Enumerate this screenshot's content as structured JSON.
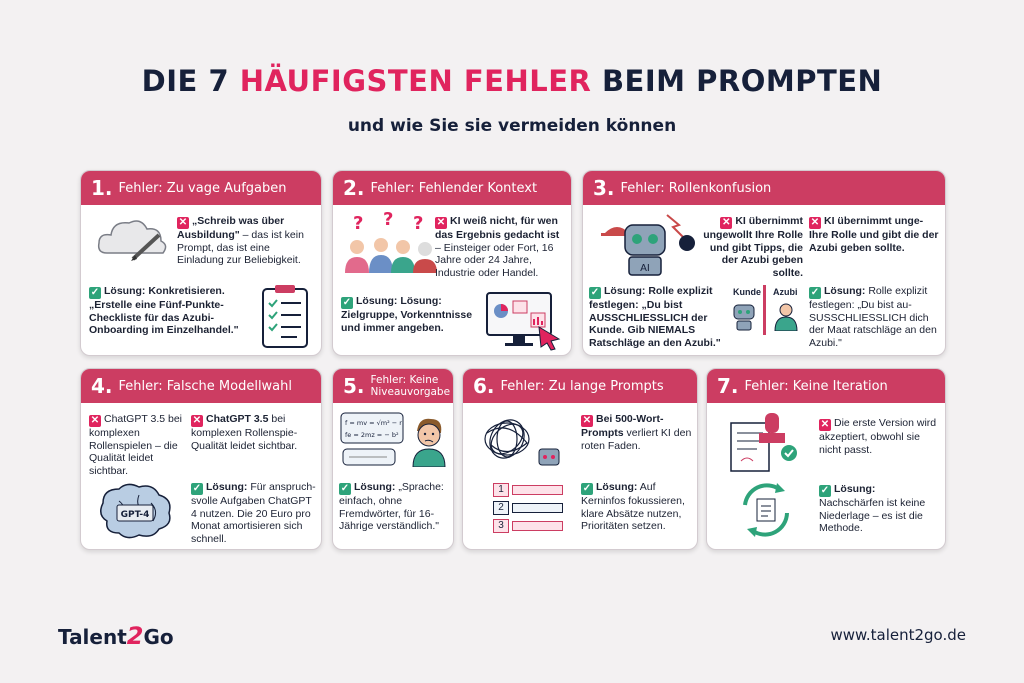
{
  "title": {
    "part1": "DIE 7 ",
    "highlight": "HÄUFIGSTEN FEHLER",
    "part2": " BEIM PROMPTEN"
  },
  "subtitle": "und wie Sie sie vermeiden können",
  "colors": {
    "accent": "#e0245e",
    "header": "#cc3d62",
    "check": "#2ea37a",
    "navy": "#16203a"
  },
  "cards": [
    {
      "num": "1.",
      "title": "Fehler: Zu vage Aufgaben",
      "problem_bold": "„Schreib was über Ausbildung\"",
      "problem_rest": " – das ist kein Prompt, das ist eine Einladung zur Beliebigkeit.",
      "solution_bold": "Lösung: Konkretisieren. „Erstelle eine Fünf-Punkte-Checkliste für das Azubi-Onboarding im Einzelhandel.\"",
      "icons": [
        "cloud-pencil-icon",
        "checklist-icon"
      ]
    },
    {
      "num": "2.",
      "title": "Fehler: Fehlender Kontext",
      "problem_bold": "KI weiß nicht, für wen das Ergebnis gedacht ist",
      "problem_rest": " – Einsteiger oder Fort, 16 Jahre oder 24 Jahre, Industrie oder Handel.",
      "solution_bold": "Lösung: Lösung: Zielgruppe, Vorkenntnisse und immer angeben.",
      "icons": [
        "people-question-icon",
        "monitor-cursor-icon"
      ]
    },
    {
      "num": "3.",
      "title": "Fehler: Rollenkonfusion",
      "problem1": "KI übernimmt ungewollt Ihre Rolle und gibt Tipps, die der Azubi geben sollte.",
      "problem2": "KI übernimmt unge-Ihre Rolle und gibt die der Azubi geben sollte.",
      "solution1": "Lösung: Rolle explizit festlegen: „Du bist AUSSCHLIESSLICH der Kunde. Gib NIEMALS Ratschläge an den Azubi.\"",
      "solution2_bold": "Lösung:",
      "solution2_rest": " Rolle explizit festlegen: „Du bist au-SUSSCHLIESSLICH dich der Maat ratschläge an den Azubi.\"",
      "label_kunde": "Kunde",
      "label_azubi": "Azubi",
      "robot_label": "AI",
      "icons": [
        "robot-hat-icon",
        "robot-icon",
        "person-icon"
      ]
    },
    {
      "num": "4.",
      "title": "Fehler: Falsche Modellwahl",
      "problem1": "ChatGPT 3.5 bei komplexen Rollenspielen – die Qualität leidet sichtbar.",
      "problem2_bold": "ChatGPT 3.5",
      "problem2_rest": " bei komplexen Rollenspie-Qualität leidet sichtbar.",
      "solution_bold": "Lösung:",
      "solution_rest": " Für anspruch-svolle Aufgaben ChatGPT 4 nutzen. Die 20 Euro pro Monat amortisieren sich schnell.",
      "brain_label": "GPT-4",
      "icons": [
        "brain-chip-icon"
      ]
    },
    {
      "num": "5.",
      "title": "Fehler: Keine Niveauvorgabe",
      "formula1": "f = mv = √m² − r",
      "formula2": "fe = 2mz = − b²",
      "solution_bold": "Lösung:",
      "solution_rest": " „Sprache: einfach, ohne Fremdwörter, für 16-Jährige verständlich.\"",
      "icons": [
        "formula-bubble-icon",
        "confused-boy-icon"
      ]
    },
    {
      "num": "6.",
      "title": "Fehler: Zu lange Prompts",
      "problem_bold": "Bei 500-Wort-Prompts",
      "problem_rest": " verliert KI den roten Faden.",
      "solution_bold": "Lösung:",
      "solution_rest": " Auf Kerninfos fokussieren, klare Absätze nutzen, Prioritäten setzen.",
      "steps": [
        "1",
        "2",
        "3"
      ],
      "icons": [
        "tangle-icon",
        "robot-small-icon",
        "numbered-list-icon"
      ]
    },
    {
      "num": "7.",
      "title": "Fehler: Keine Iteration",
      "problem": "Die erste Version wird akzeptiert, obwohl sie nicht passt.",
      "solution_bold": "Lösung:",
      "solution_rest": " Nachschärfen ist keine Niederlage – es ist die Methode.",
      "icons": [
        "stamp-document-icon",
        "cycle-arrows-icon"
      ]
    }
  ],
  "footer": {
    "logo_a": "Talent",
    "logo_b": "2",
    "logo_c": "Go",
    "url": "www.talent2go.de"
  }
}
